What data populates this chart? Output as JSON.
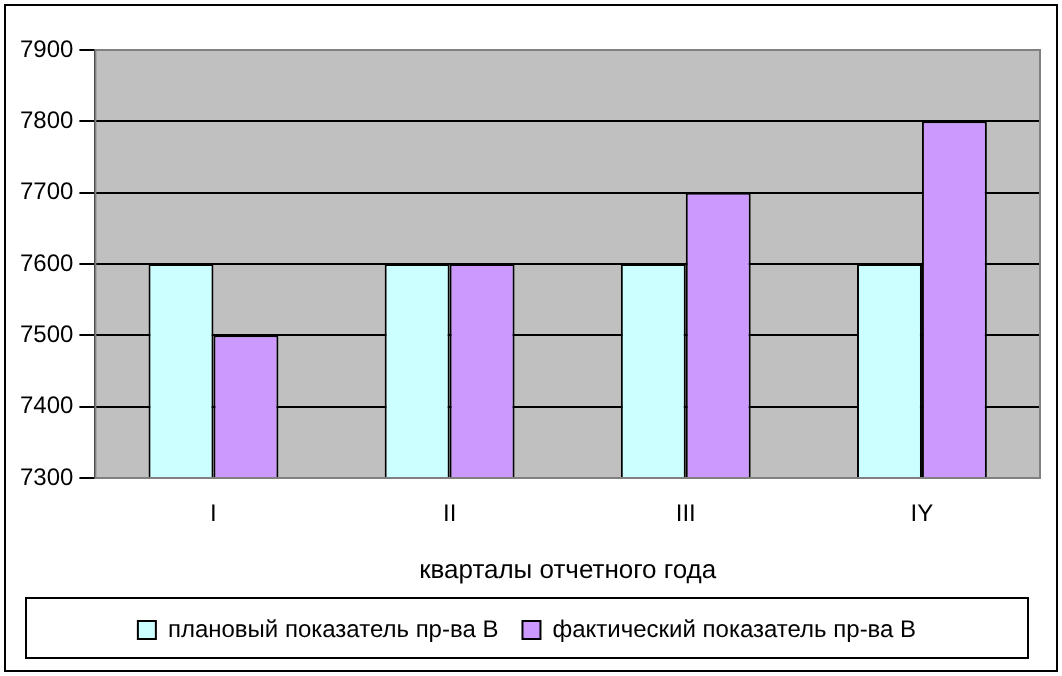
{
  "chart_data": {
    "type": "bar",
    "xlabel": "кварталы отчетного года",
    "categories": [
      "I",
      "II",
      "III",
      "IY"
    ],
    "series": [
      {
        "name": "плановый показатель пр-ва В",
        "color": "#ccffff",
        "values": [
          7600,
          7600,
          7600,
          7600
        ]
      },
      {
        "name": "фактический показатель пр-ва В",
        "color": "#cc99ff",
        "values": [
          7500,
          7600,
          7700,
          7800
        ]
      }
    ],
    "ylim": [
      7300,
      7900
    ],
    "yticks": [
      7300,
      7400,
      7500,
      7600,
      7700,
      7800,
      7900
    ],
    "grid": "y",
    "legend": "bottom"
  }
}
